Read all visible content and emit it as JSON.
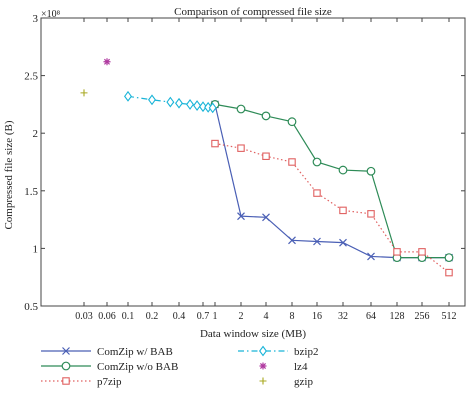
{
  "chart_data": {
    "type": "line",
    "title": "Comparison of compressed file size",
    "xlabel": "Data window size (MB)",
    "ylabel": "Compressed file size (B)",
    "y_multiplier": "×10⁸",
    "ylim": [
      0.5,
      3.0
    ],
    "yticks": [
      "0.5",
      "1",
      "1.5",
      "2",
      "2.5",
      "3"
    ],
    "xtick_labels": [
      "0.03",
      "0.06",
      "0.1",
      "0.2",
      "0.4",
      "0.7",
      "1",
      "2",
      "4",
      "8",
      "16",
      "32",
      "64",
      "128",
      "256",
      "512"
    ],
    "grid": false,
    "legend_position": "bottom",
    "series": [
      {
        "name": "ComZip w/ BAB",
        "color": "#4a5fb5",
        "dash": "solid",
        "marker": "x",
        "x": [
          "1",
          "2",
          "4",
          "8",
          "16",
          "32",
          "64",
          "128",
          "256",
          "512"
        ],
        "values": [
          2.25,
          1.28,
          1.27,
          1.07,
          1.06,
          1.05,
          0.93,
          0.92,
          0.92,
          0.92
        ]
      },
      {
        "name": "ComZip w/o BAB",
        "color": "#2e8b57",
        "dash": "solid",
        "marker": "circle",
        "x": [
          "1",
          "2",
          "4",
          "8",
          "16",
          "32",
          "64",
          "128",
          "256",
          "512"
        ],
        "values": [
          2.25,
          2.21,
          2.15,
          2.1,
          1.75,
          1.68,
          1.67,
          0.92,
          0.92,
          0.92
        ]
      },
      {
        "name": "p7zip",
        "color": "#e06060",
        "dash": "dotted",
        "marker": "square",
        "x": [
          "1",
          "2",
          "4",
          "8",
          "16",
          "32",
          "64",
          "128",
          "256",
          "512"
        ],
        "values": [
          1.91,
          1.87,
          1.8,
          1.75,
          1.48,
          1.33,
          1.3,
          0.97,
          0.97,
          0.79
        ]
      },
      {
        "name": "bzip2",
        "color": "#19b4d8",
        "dash": "dashdot",
        "marker": "diamond",
        "x": [
          "0.1",
          "0.2",
          "0.3",
          "0.4",
          "0.5",
          "0.6",
          "0.7",
          "0.8",
          "0.9"
        ],
        "values": [
          2.32,
          2.29,
          2.27,
          2.26,
          2.25,
          2.24,
          2.23,
          2.225,
          2.22
        ]
      },
      {
        "name": "lz4",
        "color": "#b03aa0",
        "dash": "none",
        "marker": "star",
        "x": [
          "0.06"
        ],
        "values": [
          2.62
        ]
      },
      {
        "name": "gzip",
        "color": "#a8a820",
        "dash": "none",
        "marker": "plus",
        "x": [
          "0.03"
        ],
        "values": [
          2.35
        ]
      }
    ]
  }
}
